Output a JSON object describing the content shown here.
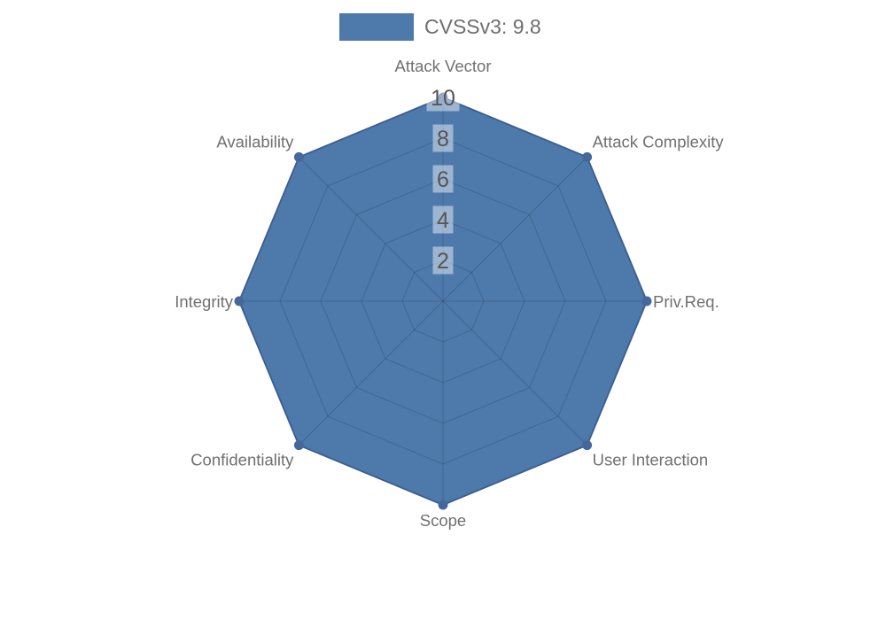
{
  "legend": {
    "label": "CVSSv3: 9.8"
  },
  "chart_data": {
    "type": "radar",
    "title": "CVSSv3: 9.8",
    "categories": [
      "Attack Vector",
      "Attack Complexity",
      "Priv.Req.",
      "User Interaction",
      "Scope",
      "Confidentiality",
      "Integrity",
      "Availability"
    ],
    "series": [
      {
        "name": "CVSSv3: 9.8",
        "values": [
          10,
          10,
          10,
          10,
          10,
          10,
          10,
          10
        ]
      }
    ],
    "scale": {
      "min": 0,
      "max": 10,
      "ticks": [
        2,
        4,
        6,
        8,
        10
      ]
    },
    "grid": true,
    "legend_position": "top",
    "colors": {
      "fill": "#4d79ab",
      "border": "#456a9e",
      "marker": "#44689c",
      "grid_line": "rgba(0,0,0,0.15)",
      "tick_backdrop": "rgba(255,255,255,0.45)",
      "tick_text": "#555555",
      "axis_label_text": "#707070"
    }
  }
}
